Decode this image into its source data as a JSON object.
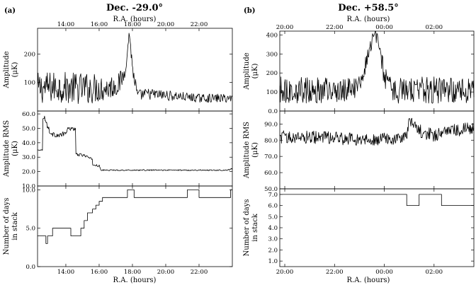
{
  "chart_data": [
    {
      "type": "line",
      "panel_label": "(a)",
      "title": "Dec. -29.0°",
      "top_axis_label": "R.A. (hours)",
      "bottom_axis_label": "R.A. (hours)",
      "x_range_hours": [
        12.3,
        24.0
      ],
      "x_ticks": [
        14,
        16,
        18,
        20,
        22
      ],
      "x_tick_labels": [
        "14:00",
        "16:00",
        "18:00",
        "20:00",
        "22:00"
      ],
      "subplots": [
        {
          "ylabel_line1": "Amplitude",
          "ylabel_line2": "(μK)",
          "ylim": [
            0,
            290
          ],
          "y_ticks": [
            100,
            200
          ],
          "y_tick_labels": [
            "100",
            "200"
          ],
          "series": {
            "x": [
              12.3,
              13.5,
              14.5,
              15.5,
              16.5,
              17.2,
              17.5,
              17.7,
              17.8,
              17.9,
              18.0,
              18.3,
              19.0,
              20.0,
              22.0,
              24.0
            ],
            "y": [
              80,
              85,
              80,
              80,
              80,
              95,
              130,
              200,
              280,
              220,
              150,
              55,
              60,
              55,
              45,
              45
            ],
            "noise_amp": [
              55,
              55,
              55,
              55,
              45,
              40,
              30,
              15,
              10,
              20,
              30,
              20,
              20,
              18,
              15,
              15
            ]
          }
        },
        {
          "ylabel_line1": "Amplitude RMS",
          "ylabel_line2": "(μK)",
          "ylim": [
            10,
            62
          ],
          "y_ticks": [
            10,
            20,
            30,
            40,
            50,
            60
          ],
          "y_tick_labels": [
            "10.0",
            "20.0",
            "30.0",
            "40.0",
            "50.0",
            "60.0"
          ],
          "series": {
            "x": [
              12.3,
              12.6,
              12.6,
              12.7,
              12.85,
              13.1,
              13.6,
              13.9,
              14.2,
              14.4,
              14.6,
              14.6,
              15.2,
              15.6,
              15.6,
              16.0,
              16.1,
              17.0,
              20.0,
              23.7,
              24.0
            ],
            "y": [
              35,
              35,
              57,
              58,
              53,
              46,
              45,
              46,
              50,
              50,
              49,
              32,
              31,
              28,
              25,
              24,
              21,
              21,
              21,
              21,
              22
            ],
            "noise_amp": [
              0.3,
              0.3,
              1,
              1.5,
              2,
              1.5,
              1.5,
              2,
              1.5,
              1.5,
              1,
              1,
              1,
              1,
              1,
              0.8,
              0.4,
              0.4,
              0.4,
              0.4,
              0.4
            ]
          }
        },
        {
          "ylabel_line1": "Number of days",
          "ylabel_line2": "in stack",
          "ylim": [
            0,
            10.5
          ],
          "y_ticks": [
            0,
            5,
            10
          ],
          "y_tick_labels": [
            "0.0",
            "5.0",
            "10.0"
          ],
          "series": {
            "x": [
              12.3,
              12.8,
              12.8,
              12.9,
              12.9,
              13.2,
              13.2,
              14.3,
              14.3,
              14.9,
              14.9,
              15.1,
              15.1,
              15.3,
              15.3,
              15.6,
              15.6,
              15.8,
              15.8,
              16.0,
              16.0,
              16.2,
              16.2,
              17.7,
              17.7,
              18.1,
              18.1,
              21.3,
              21.3,
              22.0,
              22.0,
              23.9,
              23.9,
              24.0
            ],
            "y": [
              4,
              4,
              3,
              3,
              4,
              4,
              5,
              5,
              4,
              4,
              5,
              5,
              6,
              6,
              7,
              7,
              7.5,
              7.5,
              8,
              8,
              8.5,
              8.5,
              9,
              9,
              10,
              10,
              9,
              9,
              10,
              10,
              9,
              9,
              10,
              10
            ]
          }
        }
      ]
    },
    {
      "type": "line",
      "panel_label": "(b)",
      "title": "Dec. +58.5°",
      "top_axis_label": "R.A. (hours)",
      "bottom_axis_label": "R.A. (hours)",
      "x_range_hours": [
        19.8,
        27.6
      ],
      "x_ticks": [
        20,
        22,
        24,
        26
      ],
      "x_tick_labels": [
        "20:00",
        "22:00",
        "00:00",
        "02:00"
      ],
      "subplots": [
        {
          "ylabel_line1": "Amplitude",
          "ylabel_line2": "(μK)",
          "ylim": [
            0,
            420
          ],
          "y_ticks": [
            0,
            100,
            200,
            300,
            400
          ],
          "y_tick_labels": [
            "0.0",
            "100",
            "200",
            "300",
            "400"
          ],
          "series": {
            "x": [
              19.8,
              21.0,
              22.5,
              23.0,
              23.2,
              23.4,
              23.6,
              23.8,
              24.0,
              24.2,
              25.0,
              26.0,
              27.6
            ],
            "y": [
              110,
              110,
              110,
              130,
              220,
              330,
              400,
              350,
              180,
              110,
              110,
              110,
              110
            ],
            "noise_amp": [
              70,
              70,
              70,
              60,
              50,
              40,
              30,
              40,
              60,
              70,
              70,
              70,
              70
            ]
          }
        },
        {
          "ylabel_line1": "Amplitude RMS",
          "ylabel_line2": "(μK)",
          "ylim": [
            50,
            98
          ],
          "y_ticks": [
            50,
            60,
            70,
            80,
            90
          ],
          "y_tick_labels": [
            "50.0",
            "60.0",
            "70.0",
            "80.0",
            "90.0"
          ],
          "series": {
            "x": [
              19.8,
              21.0,
              22.5,
              23.5,
              24.0,
              24.5,
              24.9,
              25.0,
              25.2,
              25.5,
              26.0,
              26.5,
              27.6
            ],
            "y": [
              82,
              82,
              81,
              80,
              82,
              80,
              82,
              92,
              90,
              85,
              83,
              86,
              87
            ],
            "noise_amp": [
              4,
              4,
              4,
              4,
              4,
              4,
              4,
              3,
              3,
              4,
              4,
              4,
              4
            ]
          }
        },
        {
          "ylabel_line1": "Number of days",
          "ylabel_line2": "in stack",
          "ylim": [
            0.5,
            7.5
          ],
          "y_ticks": [
            1,
            2,
            3,
            4,
            5,
            6,
            7
          ],
          "y_tick_labels": [
            "1.0",
            "2.0",
            "3.0",
            "4.0",
            "5.0",
            "6.0",
            "7.0"
          ],
          "series": {
            "x": [
              19.8,
              24.9,
              24.9,
              25.4,
              25.4,
              26.3,
              26.3,
              27.6
            ],
            "y": [
              7,
              7,
              6,
              6,
              7,
              7,
              6,
              6
            ]
          }
        }
      ]
    }
  ]
}
